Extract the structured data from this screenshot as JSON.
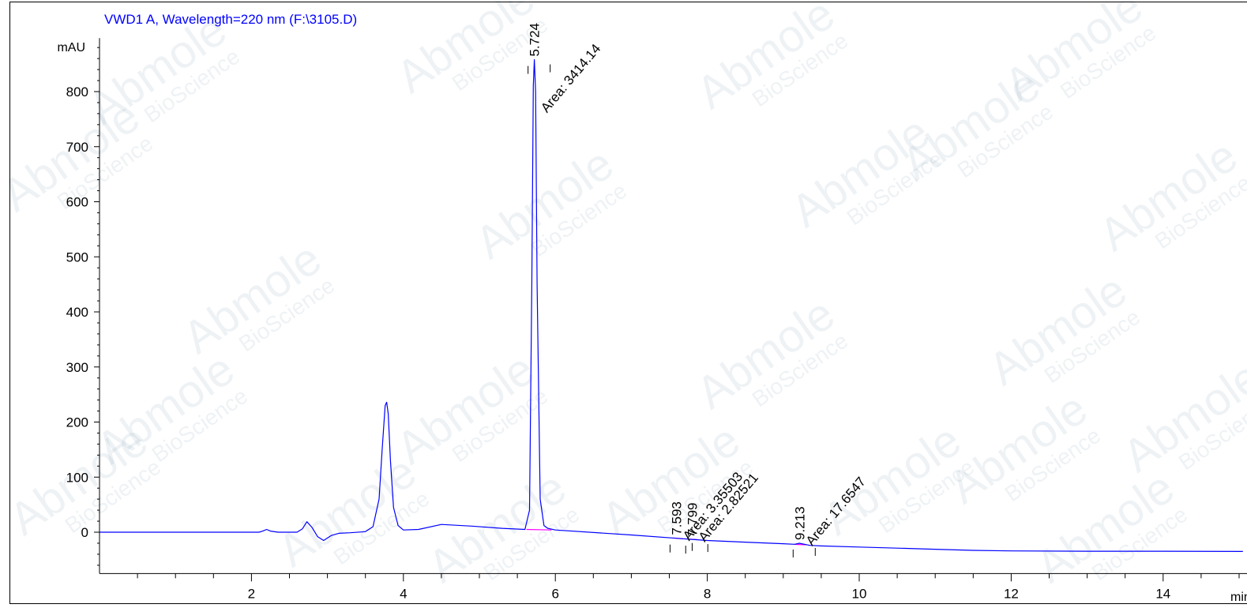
{
  "chart_data": {
    "type": "line",
    "title": "VWD1 A, Wavelength=220 nm (F:\\3105.D)",
    "xlabel": "min",
    "ylabel": "mAU",
    "xlim": [
      0,
      15.05
    ],
    "ylim": [
      -75,
      900
    ],
    "x_ticks": [
      2,
      4,
      6,
      8,
      10,
      12,
      14
    ],
    "y_ticks": [
      0,
      100,
      200,
      300,
      400,
      500,
      600,
      700,
      800
    ],
    "grid": false,
    "legend": "none",
    "colors": {
      "trace": "#0000ff",
      "baseline": "#ff00ff",
      "title": "#0000ff",
      "axis": "#000000"
    },
    "series": [
      {
        "x": [
          0,
          2.1,
          2.15,
          2.2,
          2.25,
          2.35,
          2.6,
          2.67,
          2.73,
          2.8,
          2.87,
          2.95,
          3.05,
          3.15,
          3.3,
          3.5,
          3.6,
          3.68,
          3.72,
          3.76,
          3.78,
          3.8,
          3.83,
          3.87,
          3.93,
          4.0,
          4.2,
          4.5,
          4.9,
          5.3,
          5.6,
          5.66,
          5.69,
          5.71,
          5.724,
          5.74,
          5.76,
          5.8,
          5.85,
          5.9,
          6.0,
          7.0,
          7.593,
          7.799,
          8.0,
          8.5,
          9.0,
          9.15,
          9.213,
          9.28,
          9.35,
          9.5,
          10.0,
          10.5,
          11.0,
          11.5,
          12.0,
          13.0,
          14.0,
          15.05
        ],
        "y": [
          0,
          0,
          2,
          5,
          2,
          0,
          0,
          6,
          19,
          8,
          -8,
          -15,
          -6,
          -2,
          -1,
          1,
          10,
          60,
          150,
          230,
          236,
          215,
          130,
          45,
          12,
          4,
          5,
          14,
          11,
          7,
          5,
          40,
          450,
          810,
          858,
          800,
          450,
          60,
          12,
          7,
          4,
          -5,
          -11,
          -13,
          -15,
          -18,
          -21,
          -22,
          -20,
          -22,
          -24,
          -25,
          -27,
          -29,
          -31,
          -33,
          -34,
          -34.5,
          -34.5,
          -35
        ]
      }
    ],
    "peaks": [
      {
        "rt_label": "5.724",
        "area_label": "Area: 3414.14",
        "x": 5.724,
        "y": 858
      },
      {
        "rt_label": "7.593",
        "area_label": "Area: 3.35503",
        "x": 7.593,
        "y": -11
      },
      {
        "rt_label": "7.799",
        "area_label": "Area: 2.82521",
        "x": 7.799,
        "y": -13
      },
      {
        "rt_label": "9.213",
        "area_label": "Area: 17.6547",
        "x": 9.213,
        "y": -20
      }
    ],
    "integration_baselines": [
      {
        "x": [
          5.62,
          5.95
        ],
        "y": [
          5,
          4
        ]
      },
      {
        "x": [
          7.55,
          7.68
        ],
        "y": [
          -10.5,
          -12
        ]
      },
      {
        "x": [
          7.75,
          7.88
        ],
        "y": [
          -12.5,
          -13.5
        ]
      },
      {
        "x": [
          9.15,
          9.3
        ],
        "y": [
          -22,
          -23
        ]
      }
    ]
  },
  "watermark": {
    "brand": "Abmole",
    "sub": "BioScience"
  }
}
